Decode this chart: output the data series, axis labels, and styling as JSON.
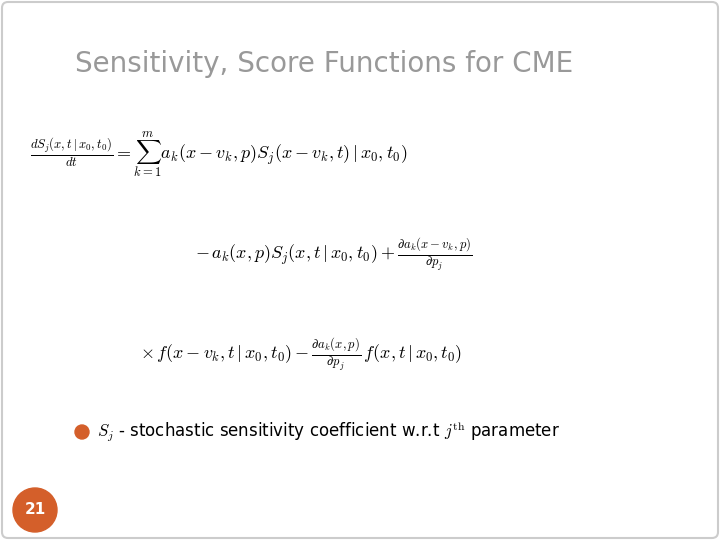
{
  "title": "Sensitivity, Score Functions for CME",
  "title_color": "#999999",
  "title_fontsize": 20,
  "background_color": "#ffffff",
  "border_color": "#cccccc",
  "bullet_color": "#d45f2a",
  "page_number": "21",
  "page_bg_color": "#d45f2a",
  "page_text_color": "#ffffff",
  "eq_color": "#000000",
  "eq_fontsize": 13
}
